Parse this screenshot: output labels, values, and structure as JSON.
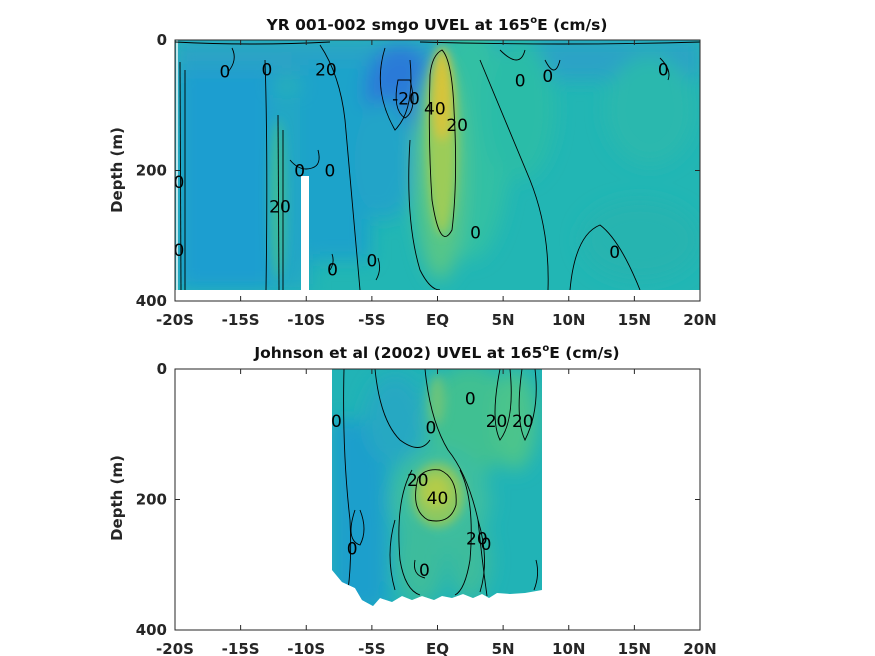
{
  "chart_data": [
    {
      "type": "contour",
      "title_main": "YR 001-002 smgo UVEL at 165",
      "title_sup": "o",
      "title_end": "E (cm/s)",
      "xlabel": "",
      "ylabel": "Depth (m)",
      "xlim": [
        -20,
        20
      ],
      "ylim": [
        400,
        0
      ],
      "x_ticks": [
        -20,
        -15,
        -10,
        -5,
        0,
        5,
        10,
        15,
        20
      ],
      "x_tick_labels": [
        "-20S",
        "-15S",
        "-10S",
        "-5S",
        "EQ",
        "5N",
        "10N",
        "15N",
        "20N"
      ],
      "y_ticks": [
        0,
        200,
        400
      ],
      "y_tick_labels": [
        "0",
        "200",
        "400"
      ],
      "contour_labels": [
        {
          "text": "0",
          "x": -19.7,
          "y": 218
        },
        {
          "text": "0",
          "x": -19.7,
          "y": 322
        },
        {
          "text": "0",
          "x": -16.2,
          "y": 48
        },
        {
          "text": "0",
          "x": -13.0,
          "y": 45
        },
        {
          "text": "20",
          "x": -8.5,
          "y": 45
        },
        {
          "text": "0",
          "x": -10.5,
          "y": 200
        },
        {
          "text": "0",
          "x": -8.2,
          "y": 200
        },
        {
          "text": "20",
          "x": -12.0,
          "y": 255
        },
        {
          "text": "0",
          "x": -8.0,
          "y": 352
        },
        {
          "text": "0",
          "x": -5.0,
          "y": 338
        },
        {
          "text": "-20",
          "x": -2.4,
          "y": 90
        },
        {
          "text": "40",
          "x": -0.2,
          "y": 105
        },
        {
          "text": "20",
          "x": 1.5,
          "y": 130
        },
        {
          "text": "0",
          "x": 2.9,
          "y": 295
        },
        {
          "text": "0",
          "x": 6.3,
          "y": 62
        },
        {
          "text": "0",
          "x": 8.4,
          "y": 55
        },
        {
          "text": "0",
          "x": 13.5,
          "y": 325
        },
        {
          "text": "0",
          "x": 17.2,
          "y": 45
        }
      ]
    },
    {
      "type": "contour",
      "title_main": "Johnson et al (2002) UVEL at 165",
      "title_sup": "o",
      "title_end": "E (cm/s)",
      "xlabel": "",
      "ylabel": "Depth (m)",
      "xlim": [
        -20,
        20
      ],
      "ylim": [
        400,
        0
      ],
      "x_ticks": [
        -20,
        -15,
        -10,
        -5,
        0,
        5,
        10,
        15,
        20
      ],
      "x_tick_labels": [
        "-20S",
        "-15S",
        "-10S",
        "-5S",
        "EQ",
        "5N",
        "10N",
        "15N",
        "20N"
      ],
      "y_ticks": [
        0,
        200,
        400
      ],
      "y_tick_labels": [
        "0",
        "200",
        "400"
      ],
      "data_extent_x": [
        -8,
        8
      ],
      "contour_labels": [
        {
          "text": "0",
          "x": -7.7,
          "y": 80
        },
        {
          "text": "0",
          "x": -0.5,
          "y": 90
        },
        {
          "text": "0",
          "x": 2.5,
          "y": 45
        },
        {
          "text": "20",
          "x": 4.5,
          "y": 80
        },
        {
          "text": "20",
          "x": 6.5,
          "y": 80
        },
        {
          "text": "20",
          "x": -1.5,
          "y": 170
        },
        {
          "text": "40",
          "x": 0.0,
          "y": 198
        },
        {
          "text": "20",
          "x": 3.0,
          "y": 260
        },
        {
          "text": "0",
          "x": 3.7,
          "y": 268
        },
        {
          "text": "0",
          "x": -6.5,
          "y": 275
        },
        {
          "text": "0",
          "x": -1.0,
          "y": 308
        }
      ]
    }
  ]
}
